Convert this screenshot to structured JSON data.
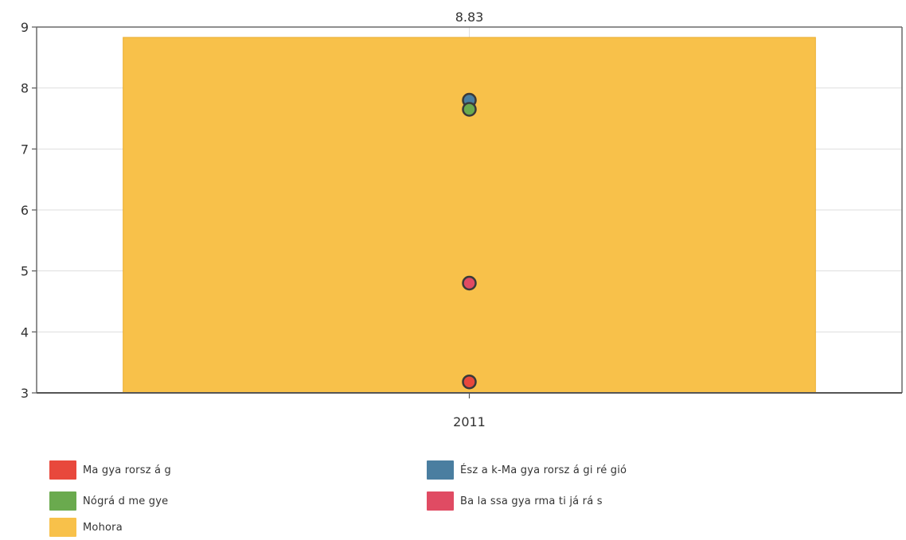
{
  "chart_data": {
    "type": "bar",
    "categories": [
      "2011"
    ],
    "ylim": [
      3,
      9
    ],
    "y_ticks": [
      "3",
      "4",
      "5",
      "6",
      "7",
      "8",
      "9"
    ],
    "grid": true,
    "legend_position": "bottom",
    "series": [
      {
        "name": "Mohora",
        "kind": "bar",
        "color": "#f8c14a",
        "values": [
          8.83
        ],
        "data_label": "8.83"
      },
      {
        "name": "Magyarország",
        "kind": "point",
        "color": "#e8483c",
        "values": [
          3.18
        ]
      },
      {
        "name": "Észak-Magyarországi régió",
        "kind": "point",
        "color": "#4a7ea0",
        "values": [
          7.8
        ]
      },
      {
        "name": "Nógrád megye",
        "kind": "point",
        "color": "#6aaa4e",
        "values": [
          7.65
        ]
      },
      {
        "name": "Balassagyarmati járás",
        "kind": "point",
        "color": "#e04b63",
        "values": [
          4.8
        ]
      }
    ]
  },
  "legend": {
    "items": [
      {
        "label": "Ma gya rorsz á g",
        "color": "#e8483c"
      },
      {
        "label": "Ész a k-Ma gya rorsz á gi ré gió",
        "color": "#4a7ea0"
      },
      {
        "label": "Nógrá d me gye",
        "color": "#6aaa4e"
      },
      {
        "label": "Ba la ssa gya rma ti já rá s",
        "color": "#e04b63"
      },
      {
        "label": "Mohora",
        "color": "#f8c14a"
      }
    ]
  }
}
